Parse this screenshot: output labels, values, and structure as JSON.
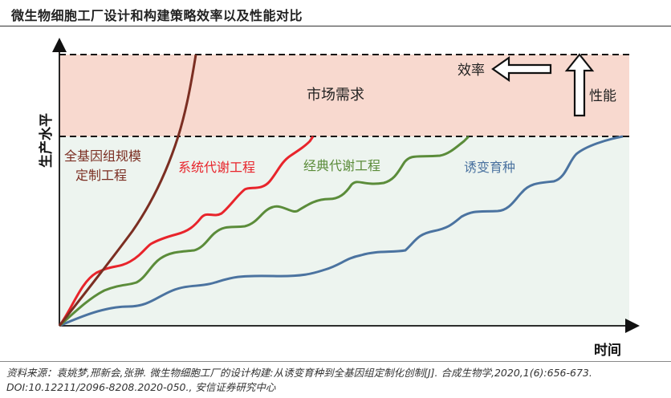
{
  "title": "微生物细胞工厂设计和构建策略效率以及性能对比",
  "diagram": {
    "y_axis_label": "生产水平",
    "x_axis_label": "时间",
    "market_demand_label": "市场需求",
    "efficiency_label": "效率",
    "performance_label": "性能",
    "curves": [
      {
        "label_line1": "全基因组规模",
        "label_line2": "定制工程",
        "color": "#7b2e22"
      },
      {
        "label_line1": "系统代谢工程",
        "label_line2": "",
        "color": "#e8242b"
      },
      {
        "label_line1": "经典代谢工程",
        "label_line2": "",
        "color": "#5b8c3a"
      },
      {
        "label_line1": "诱变育种",
        "label_line2": "",
        "color": "#4b73a0"
      }
    ],
    "colors": {
      "demand_band": "#f8d9cf",
      "background": "#edf4ef"
    }
  },
  "source": "资料来源：袁姚梦,邢新会,张翀. 微生物细胞工厂的设计构建:从诱变育种到全基因组定制化创制[J]. 合成生物学,2020,1(6):656-673. DOI:10.12211/2096-8208.2020-050., 安信证券研究中心"
}
